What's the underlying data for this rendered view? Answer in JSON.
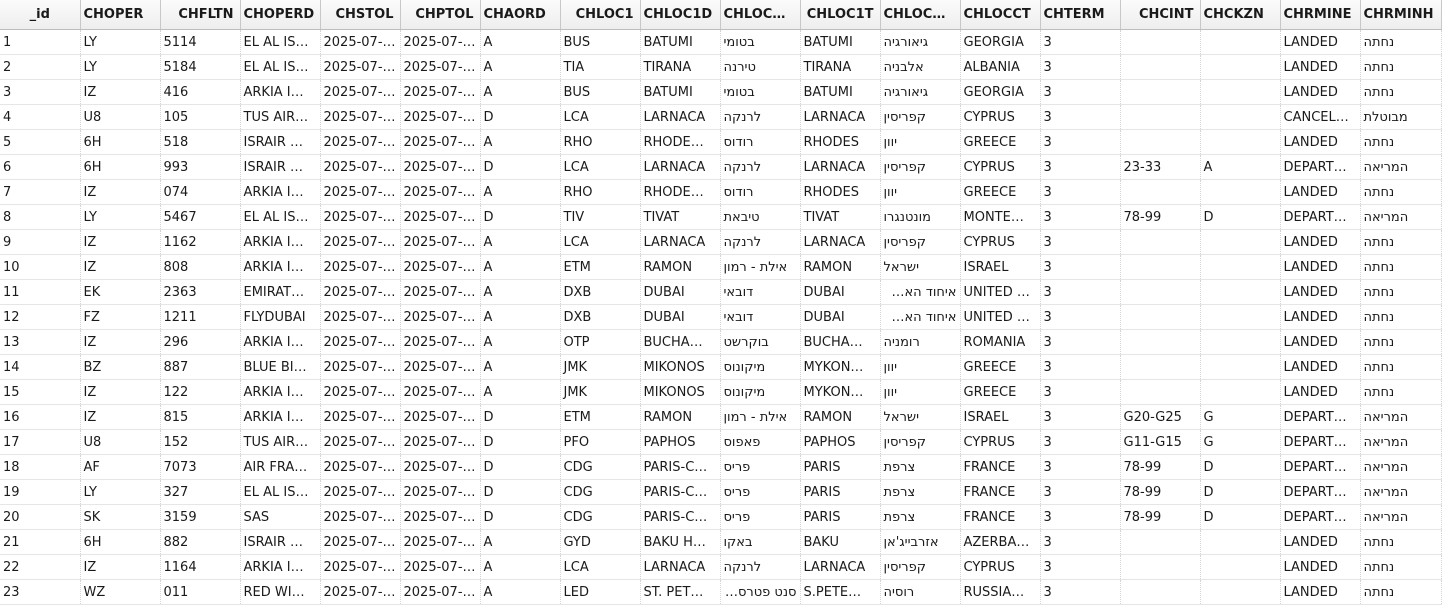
{
  "columns": [
    "_id",
    "CHOPER",
    "CHFLTN",
    "CHOPERD",
    "CHSTOL",
    "CHPTOL",
    "CHAORD",
    "CHLOC1",
    "CHLOC1D",
    "CHLOC…",
    "CHLOC1T",
    "CHLOC…",
    "CHLOCCT",
    "CHTERM",
    "CHCINT",
    "CHCKZN",
    "CHRMINE",
    "CHRMINH"
  ],
  "rows": [
    [
      "1",
      "LY",
      "5114",
      "EL AL IS…",
      "2025-07-…",
      "2025-07-…",
      "A",
      "BUS",
      "BATUMI",
      "בטומי",
      "BATUMI",
      "גיאורגיה",
      "GEORGIA",
      "3",
      "",
      "",
      "LANDED",
      "נחתה"
    ],
    [
      "2",
      "LY",
      "5184",
      "EL AL IS…",
      "2025-07-…",
      "2025-07-…",
      "A",
      "TIA",
      "TIRANA",
      "טירנה",
      "TIRANA",
      "אלבניה",
      "ALBANIA",
      "3",
      "",
      "",
      "LANDED",
      "נחתה"
    ],
    [
      "3",
      "IZ",
      "416",
      "ARKIA I…",
      "2025-07-…",
      "2025-07-…",
      "A",
      "BUS",
      "BATUMI",
      "בטומי",
      "BATUMI",
      "גיאורגיה",
      "GEORGIA",
      "3",
      "",
      "",
      "LANDED",
      "נחתה"
    ],
    [
      "4",
      "U8",
      "105",
      "TUS AIR…",
      "2025-07-…",
      "2025-07-…",
      "D",
      "LCA",
      "LARNACA",
      "לרנקה",
      "LARNACA",
      "קפריסין",
      "CYPRUS",
      "3",
      "",
      "",
      "CANCEL…",
      "מבוטלת"
    ],
    [
      "5",
      "6H",
      "518",
      "ISRAIR …",
      "2025-07-…",
      "2025-07-…",
      "A",
      "RHO",
      "RHODE…",
      "רודוס",
      "RHODES",
      "יוון",
      "GREECE",
      "3",
      "",
      "",
      "LANDED",
      "נחתה"
    ],
    [
      "6",
      "6H",
      "993",
      "ISRAIR …",
      "2025-07-…",
      "2025-07-…",
      "D",
      "LCA",
      "LARNACA",
      "לרנקה",
      "LARNACA",
      "קפריסין",
      "CYPRUS",
      "3",
      "23-33",
      "A",
      "DEPART…",
      "המריאה"
    ],
    [
      "7",
      "IZ",
      "074",
      "ARKIA I…",
      "2025-07-…",
      "2025-07-…",
      "A",
      "RHO",
      "RHODE…",
      "רודוס",
      "RHODES",
      "יוון",
      "GREECE",
      "3",
      "",
      "",
      "LANDED",
      "נחתה"
    ],
    [
      "8",
      "LY",
      "5467",
      "EL AL IS…",
      "2025-07-…",
      "2025-07-…",
      "D",
      "TIV",
      "TIVAT",
      "טיבאת",
      "TIVAT",
      "מונטנגרו",
      "MONTE…",
      "3",
      "78-99",
      "D",
      "DEPART…",
      "המריאה"
    ],
    [
      "9",
      "IZ",
      "1162",
      "ARKIA I…",
      "2025-07-…",
      "2025-07-…",
      "A",
      "LCA",
      "LARNACA",
      "לרנקה",
      "LARNACA",
      "קפריסין",
      "CYPRUS",
      "3",
      "",
      "",
      "LANDED",
      "נחתה"
    ],
    [
      "10",
      "IZ",
      "808",
      "ARKIA I…",
      "2025-07-…",
      "2025-07-…",
      "A",
      "ETM",
      "RAMON",
      "אילת - רמון",
      "RAMON",
      "ישראל",
      "ISRAEL",
      "3",
      "",
      "",
      "LANDED",
      "נחתה"
    ],
    [
      "11",
      "EK",
      "2363",
      "EMIRAT…",
      "2025-07-…",
      "2025-07-…",
      "A",
      "DXB",
      "DUBAI",
      "דובאי",
      "DUBAI",
      "איחוד האמירויות הערב",
      "UNITED …",
      "3",
      "",
      "",
      "LANDED",
      "נחתה"
    ],
    [
      "12",
      "FZ",
      "1211",
      "FLYDUBAI",
      "2025-07-…",
      "2025-07-…",
      "A",
      "DXB",
      "DUBAI",
      "דובאי",
      "DUBAI",
      "איחוד האמירויות הערב",
      "UNITED …",
      "3",
      "",
      "",
      "LANDED",
      "נחתה"
    ],
    [
      "13",
      "IZ",
      "296",
      "ARKIA I…",
      "2025-07-…",
      "2025-07-…",
      "A",
      "OTP",
      "BUCHA…",
      "בוקרשט",
      "BUCHA…",
      "רומניה",
      "ROMANIA",
      "3",
      "",
      "",
      "LANDED",
      "נחתה"
    ],
    [
      "14",
      "BZ",
      "887",
      "BLUE BI…",
      "2025-07-…",
      "2025-07-…",
      "A",
      "JMK",
      "MIKONOS",
      "מיקונוס",
      "MYKON…",
      "יוון",
      "GREECE",
      "3",
      "",
      "",
      "LANDED",
      "נחתה"
    ],
    [
      "15",
      "IZ",
      "122",
      "ARKIA I…",
      "2025-07-…",
      "2025-07-…",
      "A",
      "JMK",
      "MIKONOS",
      "מיקונוס",
      "MYKON…",
      "יוון",
      "GREECE",
      "3",
      "",
      "",
      "LANDED",
      "נחתה"
    ],
    [
      "16",
      "IZ",
      "815",
      "ARKIA I…",
      "2025-07-…",
      "2025-07-…",
      "D",
      "ETM",
      "RAMON",
      "אילת - רמון",
      "RAMON",
      "ישראל",
      "ISRAEL",
      "3",
      "G20-G25",
      "G",
      "DEPART…",
      "המריאה"
    ],
    [
      "17",
      "U8",
      "152",
      "TUS AIR…",
      "2025-07-…",
      "2025-07-…",
      "D",
      "PFO",
      "PAPHOS",
      "פאפוס",
      "PAPHOS",
      "קפריסין",
      "CYPRUS",
      "3",
      "G11-G15",
      "G",
      "DEPART…",
      "המריאה"
    ],
    [
      "18",
      "AF",
      "7073",
      "AIR FRA…",
      "2025-07-…",
      "2025-07-…",
      "D",
      "CDG",
      "PARIS-C…",
      "פריס",
      "PARIS",
      "צרפת",
      "FRANCE",
      "3",
      "78-99",
      "D",
      "DEPART…",
      "המריאה"
    ],
    [
      "19",
      "LY",
      "327",
      "EL AL IS…",
      "2025-07-…",
      "2025-07-…",
      "D",
      "CDG",
      "PARIS-C…",
      "פריס",
      "PARIS",
      "צרפת",
      "FRANCE",
      "3",
      "78-99",
      "D",
      "DEPART…",
      "המריאה"
    ],
    [
      "20",
      "SK",
      "3159",
      "SAS",
      "2025-07-…",
      "2025-07-…",
      "D",
      "CDG",
      "PARIS-C…",
      "פריס",
      "PARIS",
      "צרפת",
      "FRANCE",
      "3",
      "78-99",
      "D",
      "DEPART…",
      "המריאה"
    ],
    [
      "21",
      "6H",
      "882",
      "ISRAIR …",
      "2025-07-…",
      "2025-07-…",
      "A",
      "GYD",
      "BAKU H…",
      "באקו",
      "BAKU",
      "אזרבייג'אן",
      "AZERBA…",
      "3",
      "",
      "",
      "LANDED",
      "נחתה"
    ],
    [
      "22",
      "IZ",
      "1164",
      "ARKIA I…",
      "2025-07-…",
      "2025-07-…",
      "A",
      "LCA",
      "LARNACA",
      "לרנקה",
      "LARNACA",
      "קפריסין",
      "CYPRUS",
      "3",
      "",
      "",
      "LANDED",
      "נחתה"
    ],
    [
      "23",
      "WZ",
      "011",
      "RED WI…",
      "2025-07-…",
      "2025-07-…",
      "A",
      "LED",
      "ST. PET…",
      "סנט פטרסבורג",
      "S.PETE…",
      "רוסיה",
      "RUSSIA…",
      "3",
      "",
      "",
      "LANDED",
      "נחתה"
    ]
  ]
}
